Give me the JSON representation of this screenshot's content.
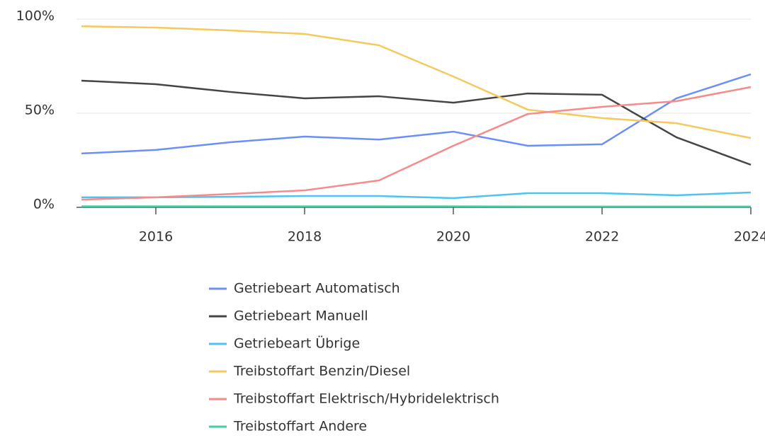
{
  "chart_data": {
    "type": "line",
    "x": [
      2015,
      2016,
      2017,
      2018,
      2019,
      2020,
      2021,
      2022,
      2023,
      2024
    ],
    "xlim": [
      2015,
      2024
    ],
    "xticks": [
      2016,
      2018,
      2020,
      2022,
      2024
    ],
    "ylim": [
      0,
      100
    ],
    "yticks": [
      {
        "value": 0,
        "label": "0%"
      },
      {
        "value": 50,
        "label": "50%"
      },
      {
        "value": 100,
        "label": "100%"
      }
    ],
    "grid": true,
    "legend": "bottom",
    "series": [
      {
        "name": "Getriebeart Automatisch",
        "color": "#6b8ff7",
        "values": [
          28.6,
          30.5,
          34.6,
          37.6,
          36,
          40.2,
          32.7,
          33.5,
          57.9,
          70.7
        ]
      },
      {
        "name": "Getriebeart Manuell",
        "color": "#454545",
        "values": [
          67.3,
          65.4,
          61.3,
          57.9,
          59,
          55.6,
          60.5,
          59.8,
          37.2,
          22.6
        ]
      },
      {
        "name": "Getriebeart Übrige",
        "color": "#4fc3f0",
        "values": [
          5.3,
          5.3,
          5.6,
          6,
          6,
          4.9,
          7.5,
          7.5,
          6.4,
          7.9
        ]
      },
      {
        "name": "Treibstoffart Benzin/Diesel",
        "color": "#f4c95d",
        "values": [
          96.2,
          95.5,
          94,
          92.1,
          86.1,
          69.5,
          51.9,
          47.4,
          44.7,
          36.8
        ]
      },
      {
        "name": "Treibstoffart Elektrisch/Hybridelektrisch",
        "color": "#f78a8a",
        "values": [
          4.1,
          5.3,
          7.1,
          9,
          14.3,
          32.7,
          49.6,
          53.4,
          56.4,
          63.9
        ]
      },
      {
        "name": "Treibstoffart Andere",
        "color": "#3fcfa0",
        "values": [
          0.5,
          0.5,
          0.5,
          0.5,
          0.5,
          0.5,
          0.4,
          0.4,
          0.4,
          0.4
        ]
      }
    ]
  }
}
